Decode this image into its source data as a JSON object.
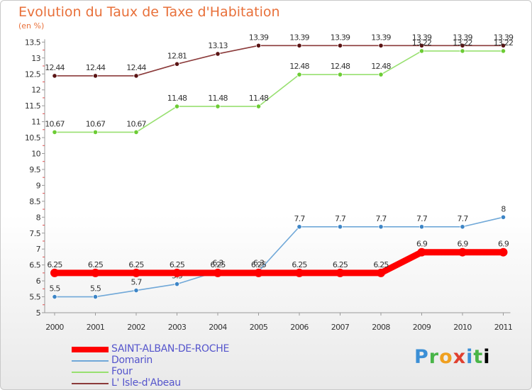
{
  "chart_data": {
    "type": "line",
    "title": "Evolution du Taux de Taxe d'Habitation",
    "subtitle": "(en %)",
    "x": [
      "2000",
      "2001",
      "2002",
      "2003",
      "2004",
      "2005",
      "2006",
      "2007",
      "2008",
      "2009",
      "2010",
      "2011"
    ],
    "ylim": [
      5,
      13.5
    ],
    "yticks": [
      "5",
      "5.5",
      "6",
      "6.5",
      "7",
      "7.5",
      "8",
      "8.5",
      "9",
      "9.5",
      "10",
      "10.5",
      "11",
      "11.5",
      "12",
      "12.5",
      "13",
      "13.5"
    ],
    "grid": false,
    "legend_position": "bottom-left",
    "series": [
      {
        "name": "SAINT-ALBAN-DE-ROCHE",
        "color": "#ff0000",
        "style": "thick",
        "values": [
          6.25,
          6.25,
          6.25,
          6.25,
          6.25,
          6.25,
          6.25,
          6.25,
          6.25,
          6.9,
          6.9,
          6.9
        ],
        "labels": [
          "6.25",
          "6.25",
          "6.25",
          "6.25",
          "6.25",
          "6.25",
          "6.25",
          "6.25",
          "6.25",
          "6.9",
          "6.9",
          "6.9"
        ]
      },
      {
        "name": "Domarin",
        "color": "#70a8d8",
        "marker_color": "#3d85c6",
        "values": [
          5.5,
          5.5,
          5.7,
          5.9,
          6.3,
          6.3,
          7.7,
          7.7,
          7.7,
          7.7,
          7.7,
          8
        ],
        "labels": [
          "5.5",
          "5.5",
          "5.7",
          "5.9",
          "6.3",
          "6.3",
          "7.7",
          "7.7",
          "7.7",
          "7.7",
          "7.7",
          "8"
        ]
      },
      {
        "name": "Four",
        "color": "#98e070",
        "marker_color": "#6ccc34",
        "values": [
          10.67,
          10.67,
          10.67,
          11.48,
          11.48,
          11.48,
          12.48,
          12.48,
          12.48,
          13.22,
          13.22,
          13.22
        ],
        "labels": [
          "10.67",
          "10.67",
          "10.67",
          "11.48",
          "11.48",
          "11.48",
          "12.48",
          "12.48",
          "12.48",
          "13.22",
          "13.22",
          "13.22"
        ]
      },
      {
        "name": "L' Isle-d'Abeau",
        "color": "#8b3a3a",
        "marker_color": "#5a1414",
        "values": [
          12.44,
          12.44,
          12.44,
          12.81,
          13.13,
          13.39,
          13.39,
          13.39,
          13.39,
          13.39,
          13.39,
          13.39
        ],
        "labels": [
          "12.44",
          "12.44",
          "12.44",
          "12.81",
          "13.13",
          "13.39",
          "13.39",
          "13.39",
          "13.39",
          "13.39",
          "13.39",
          "13.39"
        ]
      }
    ]
  },
  "brand": {
    "name": "Proxiti",
    "letters": [
      "P",
      "r",
      "o",
      "x",
      "i",
      "t",
      "i"
    ]
  }
}
